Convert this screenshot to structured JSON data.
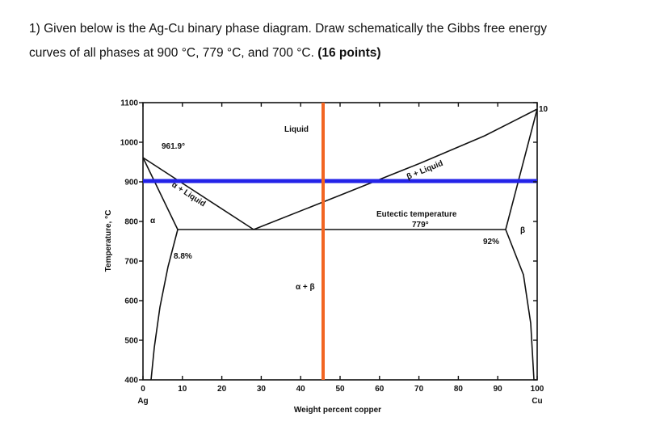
{
  "question": {
    "line1": "1) Given below is the Ag-Cu binary phase diagram. Draw schematically the Gibbs free energy",
    "line2": "curves of all phases at 900 °C, 779 °C, and 700 °C.",
    "points": "(16 points)"
  },
  "figure": {
    "y_axis_label": "Temperature, °C",
    "x_axis_label": "Weight percent copper",
    "xlim": [
      0,
      100
    ],
    "ylim": [
      400,
      1100
    ],
    "xticks": [
      0,
      10,
      20,
      30,
      40,
      50,
      60,
      70,
      80,
      90,
      100
    ],
    "yticks": [
      400,
      500,
      600,
      700,
      800,
      900,
      1000,
      1100
    ],
    "left_end_label": "Ag",
    "right_end_label": "Cu",
    "labels": {
      "liquid": "Liquid",
      "ag_melting": "961.9°",
      "cu_melting": "10",
      "alpha": "α",
      "alpha_liquid": "α + Liquid",
      "beta_liquid": "β + Liquid",
      "eutectic": "Eutectic temperature",
      "eutectic_temp": "779°",
      "alpha_limit": "8.8%",
      "beta_limit": "92%",
      "beta": "β",
      "alpha_beta": "α + β"
    }
  }
}
